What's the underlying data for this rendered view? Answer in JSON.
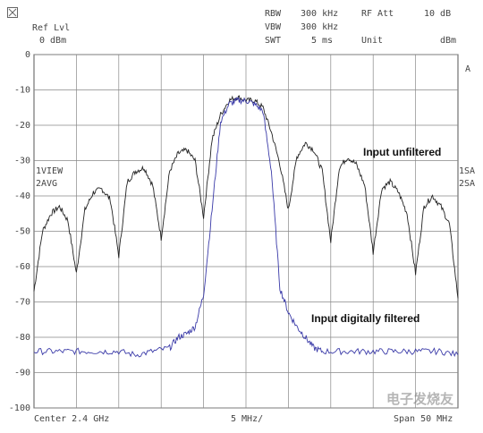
{
  "header": {
    "ref_lvl_label": "Ref Lvl",
    "ref_lvl_value": "0 dBm",
    "rbw_label": "RBW",
    "rbw_value": "300 kHz",
    "vbw_label": "VBW",
    "vbw_value": "300 kHz",
    "swt_label": "SWT",
    "swt_value": "5 ms",
    "rf_att_label": "RF Att",
    "rf_att_value": "10 dB",
    "unit_label": "Unit",
    "unit_value": "dBm"
  },
  "side_labels": {
    "left_view": "1VIEW",
    "left_avg": "2AVG",
    "right_sa1": "1SA",
    "right_sa2": "2SA",
    "corner_a": "A"
  },
  "footer": {
    "center": "Center 2.4 GHz",
    "span_div": "5 MHz/",
    "span": "Span 50 MHz"
  },
  "watermark": "电子发烧友",
  "chart_data": {
    "type": "line",
    "xlabel": "",
    "ylabel": "",
    "x_unit": "MHz",
    "y_unit": "dBm",
    "xlim": [
      2375,
      2425
    ],
    "ylim": [
      -100,
      0
    ],
    "y_ticks": [
      0,
      -10,
      -20,
      -30,
      -40,
      -50,
      -60,
      -70,
      -80,
      -90,
      -100
    ],
    "x_divisions": 10,
    "grid": true,
    "annotations": [
      "Input unfiltered",
      "Input digitally filtered"
    ],
    "series": [
      {
        "color": "#222222",
        "x": [
          2375,
          2376,
          2377,
          2378,
          2379,
          2380,
          2381,
          2382,
          2383,
          2384,
          2385,
          2386,
          2387,
          2388,
          2389,
          2390,
          2391,
          2392,
          2393,
          2394,
          2395,
          2396,
          2397,
          2398,
          2399,
          2400,
          2401,
          2402,
          2403,
          2404,
          2405,
          2406,
          2407,
          2408,
          2409,
          2410,
          2411,
          2412,
          2413,
          2414,
          2415,
          2416,
          2417,
          2418,
          2419,
          2420,
          2421,
          2422,
          2423,
          2424,
          2425
        ],
        "values": [
          -67,
          -50,
          -45,
          -43,
          -47,
          -62,
          -44,
          -39,
          -38,
          -41,
          -57,
          -36,
          -33,
          -32,
          -37,
          -52,
          -33,
          -28,
          -27,
          -30,
          -46,
          -24,
          -17,
          -13,
          -12,
          -13,
          -13,
          -15,
          -22,
          -31,
          -44,
          -29,
          -25,
          -27,
          -33,
          -53,
          -32,
          -29,
          -31,
          -37,
          -56,
          -38,
          -36,
          -39,
          -45,
          -62,
          -43,
          -40,
          -43,
          -48,
          -69
        ]
      },
      {
        "color": "#3a3aa8",
        "x": [
          2375,
          2377,
          2379,
          2381,
          2383,
          2385,
          2387,
          2389,
          2391,
          2392,
          2393,
          2394,
          2395,
          2396,
          2397,
          2398,
          2399,
          2400,
          2401,
          2402,
          2403,
          2404,
          2405,
          2406,
          2407,
          2408,
          2409,
          2411,
          2413,
          2415,
          2417,
          2419,
          2421,
          2423,
          2425
        ],
        "values": [
          -84,
          -84,
          -84,
          -84,
          -84,
          -84,
          -85,
          -84,
          -83,
          -80,
          -79,
          -77,
          -68,
          -44,
          -19,
          -14,
          -13,
          -13,
          -14,
          -16,
          -33,
          -66,
          -73,
          -77,
          -80,
          -83,
          -84,
          -84,
          -84,
          -84,
          -84,
          -84,
          -84,
          -84,
          -85
        ]
      }
    ]
  }
}
